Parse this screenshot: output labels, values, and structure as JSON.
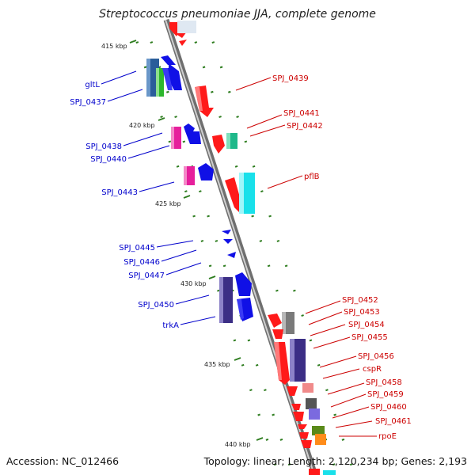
{
  "title": "Streptococcus pneumoniae JJA, complete genome",
  "accession": "Accession: NC_012466",
  "topology": "Topology: linear; Length: 2,120,234 bp; Genes: 2,193",
  "scale_ticks": [
    "415 kbp",
    "420 kbp",
    "425 kbp",
    "430 kbp",
    "435 kbp",
    "440 kbp"
  ],
  "left_labels": [
    "gltL",
    "SPJ_0437",
    "SPJ_0438",
    "SPJ_0440",
    "SPJ_0443",
    "SPJ_0445",
    "SPJ_0446",
    "SPJ_0447",
    "SPJ_0450",
    "trkA"
  ],
  "right_labels": [
    "SPJ_0439",
    "SPJ_0441",
    "SPJ_0442",
    "pflB",
    "SPJ_0452",
    "SPJ_0453",
    "SPJ_0454",
    "SPJ_0455",
    "SPJ_0456",
    "cspR",
    "SPJ_0458",
    "SPJ_0459",
    "SPJ_0460",
    "SPJ_0461",
    "rpoE"
  ],
  "colors": {
    "left_label": "#0000cc",
    "right_label": "#cc0000",
    "backbone": "#8a8a8a",
    "tick": "#2e7d1f"
  }
}
